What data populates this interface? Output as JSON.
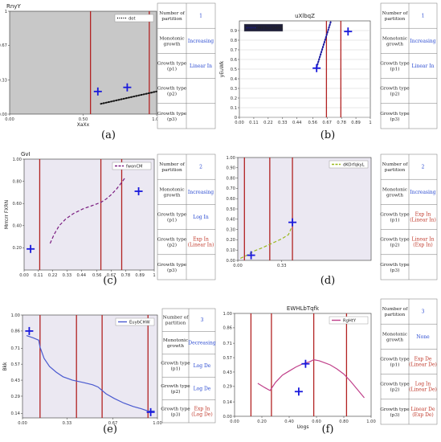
{
  "colors": {
    "axis_bg_gray": "#c8c8c8",
    "axis_bg_lavender": "#ebe8f2",
    "partition_line": "#b22222",
    "cross_marker": "#1a1adc",
    "value_blue": "#2b4bd1",
    "value_red": "#c0392b"
  },
  "table_labels": {
    "partitions": "Number of partition",
    "monotonic": "Monotonic growth",
    "p1": "Growth type (p1)",
    "p2": "Growth type (p2)",
    "p3": "Growth type (p3)"
  },
  "panels": [
    {
      "caption": "(a)",
      "table": {
        "partitions": {
          "text": "1",
          "color": "blue"
        },
        "monotonic": {
          "text": "Increasing",
          "color": "blue"
        },
        "p1": {
          "text": "Linear In",
          "color": "blue"
        },
        "p2": {
          "text": "",
          "color": "blue"
        },
        "p3": {
          "text": "",
          "color": "blue"
        }
      }
    },
    {
      "caption": "(b)",
      "table": {
        "partitions": {
          "text": "1",
          "color": "blue"
        },
        "monotonic": {
          "text": "Increasing",
          "color": "blue"
        },
        "p1": {
          "text": "Linear In",
          "color": "blue"
        },
        "p2": {
          "text": "",
          "color": "blue"
        },
        "p3": {
          "text": "",
          "color": "blue"
        }
      }
    },
    {
      "caption": "(c)",
      "table": {
        "partitions": {
          "text": "2",
          "color": "blue"
        },
        "monotonic": {
          "text": "Increasing",
          "color": "blue"
        },
        "p1": {
          "text": "Log In",
          "color": "blue"
        },
        "p2": {
          "text": "Exp In (Linear In)",
          "color": "red"
        },
        "p3": {
          "text": "",
          "color": "blue"
        }
      }
    },
    {
      "caption": "(d)",
      "table": {
        "partitions": {
          "text": "2",
          "color": "blue"
        },
        "monotonic": {
          "text": "Increasing",
          "color": "blue"
        },
        "p1": {
          "text": "Exp In (Linear In)",
          "color": "red"
        },
        "p2": {
          "text": "Linear In (Exp In)",
          "color": "red"
        },
        "p3": {
          "text": "",
          "color": "blue"
        }
      }
    },
    {
      "caption": "(e)",
      "table": {
        "partitions": {
          "text": "3",
          "color": "blue"
        },
        "monotonic": {
          "text": "Decreasing",
          "color": "blue"
        },
        "p1": {
          "text": "Log De",
          "color": "blue"
        },
        "p2": {
          "text": "Log De",
          "color": "blue"
        },
        "p3": {
          "text": "Exp In (Log De)",
          "color": "red"
        }
      }
    },
    {
      "caption": "(f)",
      "table": {
        "partitions": {
          "text": "3",
          "color": "blue"
        },
        "monotonic": {
          "text": "None",
          "color": "blue"
        },
        "p1": {
          "text": "Exp De (Linear De)",
          "color": "red"
        },
        "p2": {
          "text": "Log In (Linear De)",
          "color": "red"
        },
        "p3": {
          "text": "Linear De (Exp De)",
          "color": "red"
        }
      }
    }
  ],
  "chart_data": [
    {
      "type": "line",
      "title": "RnyY",
      "xlabel": "XaXx",
      "ylabel": "",
      "background": "gray",
      "xlim": [
        0,
        1
      ],
      "ylim": [
        0,
        1
      ],
      "xticks": [
        {
          "v": 0,
          "label": "0.00"
        },
        {
          "v": 0.5,
          "label": "0.50"
        },
        {
          "v": 1,
          "label": "1.00"
        }
      ],
      "yticks": [
        {
          "v": 0,
          "label": "0.00"
        },
        {
          "v": 0.33,
          "label": "0.33"
        },
        {
          "v": 0.67,
          "label": "0.67"
        },
        {
          "v": 1,
          "label": "1"
        }
      ],
      "grid": false,
      "legend": {
        "position": "top-right",
        "entries": [
          {
            "name": "dot",
            "style": "dotted",
            "color": "#111111"
          }
        ]
      },
      "series": [
        {
          "name": "dot",
          "style": "dotted",
          "color": "#111111",
          "x": [
            0.62,
            1.0
          ],
          "y": [
            0.1,
            0.22
          ]
        }
      ],
      "partitions": [
        0.55,
        0.95
      ],
      "markers": [
        {
          "x": 0.6,
          "y": 0.22
        },
        {
          "x": 0.8,
          "y": 0.26
        }
      ]
    },
    {
      "type": "line",
      "title": "uXlbqZ",
      "xlabel": "",
      "ylabel": "yEuWk",
      "background": "white",
      "xlim": [
        0,
        1
      ],
      "ylim": [
        0,
        1
      ],
      "xticks": [
        {
          "v": 0,
          "label": "0.00"
        },
        {
          "v": 0.11,
          "label": "0.11"
        },
        {
          "v": 0.22,
          "label": "0.22"
        },
        {
          "v": 0.33,
          "label": "0.33"
        },
        {
          "v": 0.44,
          "label": "0.44"
        },
        {
          "v": 0.56,
          "label": "0.56"
        },
        {
          "v": 0.67,
          "label": "0.67"
        },
        {
          "v": 0.78,
          "label": "0.78"
        },
        {
          "v": 0.89,
          "label": "0.89"
        },
        {
          "v": 1,
          "label": "1"
        }
      ],
      "yticks": [
        {
          "v": 0,
          "label": "0"
        },
        {
          "v": 0.1,
          "label": "0.1"
        },
        {
          "v": 0.2,
          "label": "0.2"
        },
        {
          "v": 0.3,
          "label": "0.3"
        },
        {
          "v": 0.4,
          "label": "0.4"
        },
        {
          "v": 0.5,
          "label": "0.5"
        },
        {
          "v": 0.6,
          "label": "0.6"
        },
        {
          "v": 0.7,
          "label": "0.7"
        },
        {
          "v": 0.8,
          "label": "0.8"
        },
        {
          "v": 0.9,
          "label": "0.9"
        }
      ],
      "grid": true,
      "legend": {
        "position": "top-left",
        "entries": [
          {
            "name": "MFTwcSHRR",
            "style": "dotted",
            "color": "#1a1aa0"
          }
        ]
      },
      "series": [
        {
          "name": "MFTwcSHRR",
          "style": "dotted",
          "color": "#1a1aa0",
          "x": [
            0.59,
            0.7
          ],
          "y": [
            0.52,
            1.0
          ]
        }
      ],
      "partitions": [
        0.665,
        0.775
      ],
      "markers": [
        {
          "x": 0.59,
          "y": 0.51
        },
        {
          "x": 0.83,
          "y": 0.89
        }
      ]
    },
    {
      "type": "line",
      "title": "GvI",
      "xlabel": "",
      "ylabel": "Mrrcrr\nFXRN",
      "background": "lavender",
      "xlim": [
        0,
        1
      ],
      "ylim": [
        0,
        1
      ],
      "xticks": [
        {
          "v": 0,
          "label": "0.00"
        },
        {
          "v": 0.11,
          "label": "0.11"
        },
        {
          "v": 0.22,
          "label": "0.22"
        },
        {
          "v": 0.33,
          "label": "0.33"
        },
        {
          "v": 0.44,
          "label": "0.44"
        },
        {
          "v": 0.56,
          "label": "0.56"
        },
        {
          "v": 0.67,
          "label": "0.67"
        },
        {
          "v": 0.78,
          "label": "0.78"
        },
        {
          "v": 0.89,
          "label": "0.89"
        },
        {
          "v": 1,
          "label": "1"
        }
      ],
      "yticks": [
        {
          "v": 0.2,
          "label": "0.20"
        },
        {
          "v": 0.4,
          "label": "0.40"
        },
        {
          "v": 0.6,
          "label": "0.60"
        },
        {
          "v": 0.8,
          "label": "0.80"
        },
        {
          "v": 1,
          "label": "1.00"
        }
      ],
      "grid": false,
      "legend": {
        "position": "top-right",
        "entries": [
          {
            "name": "fwonCM",
            "style": "dashed",
            "color": "#7a1c80"
          }
        ]
      },
      "series": [
        {
          "name": "fwonCM",
          "style": "dashed",
          "color": "#7a1c80",
          "x": [
            0.2,
            0.23,
            0.27,
            0.32,
            0.38,
            0.45,
            0.52,
            0.59,
            0.63,
            0.67,
            0.71,
            0.75,
            0.78
          ],
          "y": [
            0.24,
            0.32,
            0.4,
            0.46,
            0.51,
            0.55,
            0.58,
            0.61,
            0.64,
            0.68,
            0.73,
            0.79,
            0.84
          ]
        }
      ],
      "partitions": [
        0.12,
        0.59,
        0.75
      ],
      "markers": [
        {
          "x": 0.05,
          "y": 0.19
        },
        {
          "x": 0.88,
          "y": 0.71
        }
      ]
    },
    {
      "type": "line",
      "title": "",
      "xlabel": "",
      "ylabel": "",
      "background": "lavender",
      "xlim": [
        0,
        1
      ],
      "ylim": [
        0,
        1
      ],
      "xticks": [
        {
          "v": 0,
          "label": "0.00"
        },
        {
          "v": 0.33,
          "label": "0.33"
        }
      ],
      "yticks": [
        {
          "v": 0,
          "label": "0.00"
        },
        {
          "v": 0.1,
          "label": "0.10"
        },
        {
          "v": 0.2,
          "label": "0.20"
        },
        {
          "v": 0.3,
          "label": "0.30"
        },
        {
          "v": 0.4,
          "label": "0.40"
        },
        {
          "v": 0.5,
          "label": "0.50"
        },
        {
          "v": 0.6,
          "label": "0.60"
        },
        {
          "v": 0.7,
          "label": "0.70"
        },
        {
          "v": 0.8,
          "label": "0.80"
        },
        {
          "v": 0.9,
          "label": "0.90"
        },
        {
          "v": 1,
          "label": "1.00"
        }
      ],
      "grid": false,
      "legend": {
        "position": "top-right",
        "entries": [
          {
            "name": "dKOrfqkyL",
            "style": "dashed",
            "color": "#9ab81c"
          }
        ]
      },
      "series": [
        {
          "name": "dKOrfqkyL",
          "style": "dashed",
          "color": "#9ab81c",
          "x": [
            0.02,
            0.07,
            0.12,
            0.18,
            0.23,
            0.28,
            0.33,
            0.38,
            0.4
          ],
          "y": [
            0.02,
            0.05,
            0.09,
            0.12,
            0.15,
            0.18,
            0.21,
            0.25,
            0.31
          ]
        }
      ],
      "partitions": [
        0.05,
        0.24,
        0.41
      ],
      "markers": [
        {
          "x": 0.1,
          "y": 0.05
        },
        {
          "x": 0.41,
          "y": 0.37
        }
      ]
    },
    {
      "type": "line",
      "title": "",
      "xlabel": "",
      "ylabel": "Bkk",
      "background": "lavender",
      "xlim": [
        0,
        1
      ],
      "ylim": [
        0.1,
        1
      ],
      "xticks": [
        {
          "v": 0,
          "label": "0.00"
        },
        {
          "v": 0.33,
          "label": "0.33"
        },
        {
          "v": 0.67,
          "label": "0.67"
        },
        {
          "v": 1,
          "label": "1.00"
        }
      ],
      "yticks": [
        {
          "v": 0.14,
          "label": "0.14"
        },
        {
          "v": 0.29,
          "label": "0.29"
        },
        {
          "v": 0.43,
          "label": "0.43"
        },
        {
          "v": 0.57,
          "label": "0.57"
        },
        {
          "v": 0.71,
          "label": "0.71"
        },
        {
          "v": 0.86,
          "label": "0.86"
        },
        {
          "v": 1,
          "label": "1.00"
        }
      ],
      "grid": false,
      "legend": {
        "position": "top-right",
        "entries": [
          {
            "name": "EuybCHW",
            "style": "solid",
            "color": "#4a5ad0"
          }
        ]
      },
      "series": [
        {
          "name": "EuybCHW",
          "style": "solid",
          "color": "#4a5ad0",
          "x": [
            0.03,
            0.08,
            0.12,
            0.13,
            0.16,
            0.2,
            0.25,
            0.3,
            0.37,
            0.45,
            0.52,
            0.56,
            0.58,
            0.62,
            0.68,
            0.75,
            0.82,
            0.88,
            0.93,
            0.96,
            0.98
          ],
          "y": [
            0.82,
            0.8,
            0.78,
            0.72,
            0.62,
            0.55,
            0.5,
            0.46,
            0.43,
            0.41,
            0.39,
            0.37,
            0.35,
            0.31,
            0.27,
            0.23,
            0.2,
            0.18,
            0.16,
            0.16,
            0.16
          ]
        }
      ],
      "partitions": [
        0.13,
        0.4,
        0.59,
        0.93
      ],
      "markers": [
        {
          "x": 0.05,
          "y": 0.86
        },
        {
          "x": 0.95,
          "y": 0.15
        }
      ]
    },
    {
      "type": "line",
      "title": "EWHLbTqfk",
      "xlabel": "Uogs",
      "ylabel": "",
      "background": "white",
      "xlim": [
        0,
        1
      ],
      "ylim": [
        0,
        1
      ],
      "xticks": [
        {
          "v": 0,
          "label": "0.00"
        },
        {
          "v": 0.2,
          "label": "0.20"
        },
        {
          "v": 0.4,
          "label": "0.40"
        },
        {
          "v": 0.6,
          "label": "0.60"
        },
        {
          "v": 0.8,
          "label": "0.80"
        },
        {
          "v": 1,
          "label": "1.00"
        }
      ],
      "yticks": [
        {
          "v": 0,
          "label": "0.00"
        },
        {
          "v": 0.14,
          "label": "0.14"
        },
        {
          "v": 0.29,
          "label": "0.29"
        },
        {
          "v": 0.43,
          "label": "0.43"
        },
        {
          "v": 0.57,
          "label": "0.57"
        },
        {
          "v": 0.71,
          "label": "0.71"
        },
        {
          "v": 0.86,
          "label": "0.86"
        },
        {
          "v": 1,
          "label": "1.00"
        }
      ],
      "grid": false,
      "legend": {
        "position": "top-right",
        "entries": [
          {
            "name": "RgHtY",
            "style": "solid",
            "color": "#c0408a"
          }
        ]
      },
      "series": [
        {
          "name": "RgHtY",
          "style": "solid",
          "color": "#c0408a",
          "x": [
            0.17,
            0.22,
            0.26,
            0.3,
            0.35,
            0.4,
            0.45,
            0.5,
            0.55,
            0.58,
            0.62,
            0.66,
            0.7,
            0.75,
            0.8,
            0.85,
            0.9,
            0.95
          ],
          "y": [
            0.32,
            0.28,
            0.25,
            0.33,
            0.4,
            0.44,
            0.48,
            0.51,
            0.53,
            0.55,
            0.54,
            0.52,
            0.5,
            0.46,
            0.41,
            0.34,
            0.26,
            0.18
          ]
        }
      ],
      "partitions": [
        0.12,
        0.27,
        0.58,
        0.82
      ],
      "markers": [
        {
          "x": 0.52,
          "y": 0.51
        },
        {
          "x": 0.47,
          "y": 0.24
        }
      ]
    }
  ]
}
